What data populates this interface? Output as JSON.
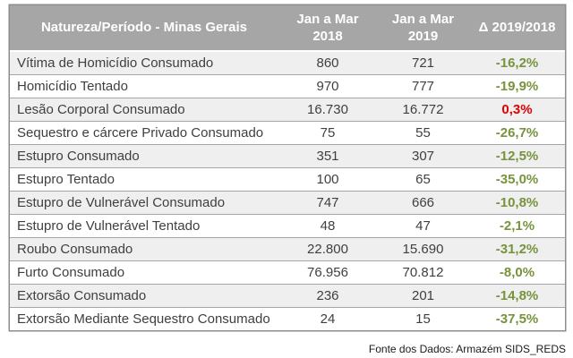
{
  "table": {
    "title": "Natureza/Período - Minas Gerais",
    "columns": [
      {
        "label": "Natureza/Período - Minas Gerais"
      },
      {
        "label_line1": "Jan a Mar",
        "label_line2": "2018"
      },
      {
        "label_line1": "Jan a Mar",
        "label_line2": "2019"
      },
      {
        "label": "Δ 2019/2018"
      }
    ],
    "rows": [
      {
        "name": "Vítima de Homicídio Consumado",
        "v2018": "860",
        "v2019": "721",
        "delta": "-16,2%",
        "trend": "down"
      },
      {
        "name": "Homicídio Tentado",
        "v2018": "970",
        "v2019": "777",
        "delta": "-19,9%",
        "trend": "down"
      },
      {
        "name": "Lesão Corporal Consumado",
        "v2018": "16.730",
        "v2019": "16.772",
        "delta": "0,3%",
        "trend": "up"
      },
      {
        "name": "Sequestro e cárcere Privado Consumado",
        "v2018": "75",
        "v2019": "55",
        "delta": "-26,7%",
        "trend": "down"
      },
      {
        "name": "Estupro Consumado",
        "v2018": "351",
        "v2019": "307",
        "delta": "-12,5%",
        "trend": "down"
      },
      {
        "name": "Estupro Tentado",
        "v2018": "100",
        "v2019": "65",
        "delta": "-35,0%",
        "trend": "down"
      },
      {
        "name": "Estupro de Vulnerável Consumado",
        "v2018": "747",
        "v2019": "666",
        "delta": "-10,8%",
        "trend": "down"
      },
      {
        "name": "Estupro de Vulnerável Tentado",
        "v2018": "48",
        "v2019": "47",
        "delta": "-2,1%",
        "trend": "down"
      },
      {
        "name": "Roubo Consumado",
        "v2018": "22.800",
        "v2019": "15.690",
        "delta": "-31,2%",
        "trend": "down"
      },
      {
        "name": "Furto Consumado",
        "v2018": "76.956",
        "v2019": "70.812",
        "delta": "-8,0%",
        "trend": "down"
      },
      {
        "name": "Extorsão Consumado",
        "v2018": "236",
        "v2019": "201",
        "delta": "-14,8%",
        "trend": "down"
      },
      {
        "name": "Extorsão Mediante Sequestro Consumado",
        "v2018": "24",
        "v2019": "15",
        "delta": "-37,5%",
        "trend": "down"
      }
    ]
  },
  "footer": {
    "source": "Fonte dos Dados: Armazém SIDS_REDS"
  },
  "colors": {
    "header_bg": "#a6a6a6",
    "stripe": "#efefef",
    "green": "#77933c",
    "red": "#e00000",
    "border": "#a6a6a6",
    "text": "#3f3f3f"
  },
  "chart_data": {
    "type": "table",
    "title": "Natureza/Período - Minas Gerais",
    "columns": [
      "Natureza/Período - Minas Gerais",
      "Jan a Mar 2018",
      "Jan a Mar 2019",
      "Δ 2019/2018 (%)"
    ],
    "rows": [
      [
        "Vítima de Homicídio Consumado",
        860,
        721,
        -16.2
      ],
      [
        "Homicídio Tentado",
        970,
        777,
        -19.9
      ],
      [
        "Lesão Corporal Consumado",
        16730,
        16772,
        0.3
      ],
      [
        "Sequestro e cárcere Privado Consumado",
        75,
        55,
        -26.7
      ],
      [
        "Estupro Consumado",
        351,
        307,
        -12.5
      ],
      [
        "Estupro Tentado",
        100,
        65,
        -35.0
      ],
      [
        "Estupro de Vulnerável Consumado",
        747,
        666,
        -10.8
      ],
      [
        "Estupro de Vulnerável Tentado",
        48,
        47,
        -2.1
      ],
      [
        "Roubo Consumado",
        22800,
        15690,
        -31.2
      ],
      [
        "Furto Consumado",
        76956,
        70812,
        -8.0
      ],
      [
        "Extorsão Consumado",
        236,
        201,
        -14.8
      ],
      [
        "Extorsão Mediante Sequestro Consumado",
        24,
        15,
        -37.5
      ]
    ],
    "notes": "Negative deltas shown in green, positive delta shown in red. Source: Armazém SIDS_REDS"
  }
}
